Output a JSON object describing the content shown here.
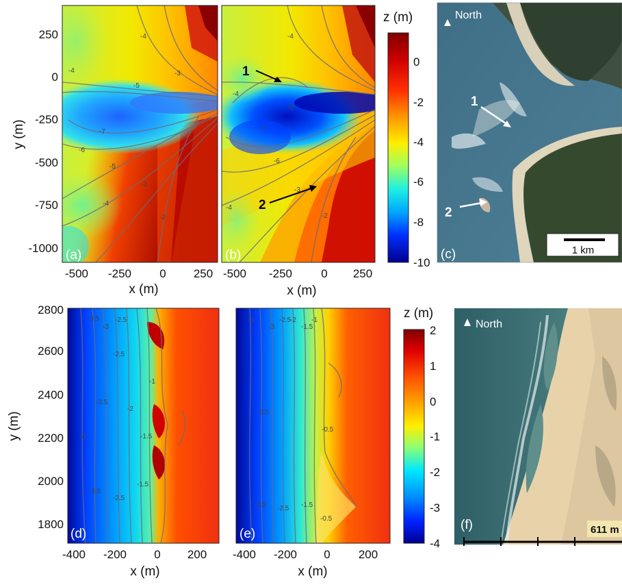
{
  "panels": {
    "a": "(a)",
    "b": "(b)",
    "c": "(c)",
    "d": "(d)",
    "e": "(e)",
    "f": "(f)"
  },
  "top": {
    "xlabel_a": "x (m)",
    "xlabel_b": "x (m)",
    "ylabel": "y (m)",
    "yticks": [
      "250",
      "0",
      "-250",
      "-500",
      "-750",
      "-1000"
    ],
    "xticks_a": [
      "-500",
      "-250",
      "0",
      "250"
    ],
    "xticks_b": [
      "-500",
      "-250",
      "0",
      "250"
    ],
    "colorbar": {
      "title": "z (m)",
      "ticks": [
        "0",
        "-2",
        "-4",
        "-6",
        "-8",
        "-10"
      ],
      "range": [
        -10,
        1.5
      ]
    },
    "arrow1": "1",
    "arrow2": "2",
    "contour_labels_a": [
      "-4",
      "-5",
      "-7",
      "-6",
      "-5",
      "-4",
      "-3",
      "-2",
      "-3",
      "-4"
    ],
    "contour_labels_b": [
      "-4",
      "-5",
      "-7",
      "-6",
      "-4",
      "-3",
      "-2",
      "-4"
    ],
    "photo_c": {
      "north": "North",
      "label1": "1",
      "label2": "2",
      "scale": "1 km"
    }
  },
  "bottom": {
    "xlabel_d": "x (m)",
    "xlabel_e": "x (m)",
    "ylabel": "y (m)",
    "yticks": [
      "2800",
      "2600",
      "2400",
      "2200",
      "2000",
      "1800"
    ],
    "xticks_d": [
      "-400",
      "-200",
      "0",
      "200"
    ],
    "xticks_e": [
      "-400",
      "-200",
      "0",
      "200"
    ],
    "colorbar": {
      "title": "z (m)",
      "ticks": [
        "2",
        "1",
        "0",
        "-1",
        "-2",
        "-3",
        "-4"
      ],
      "range": [
        -4,
        2
      ]
    },
    "contour_labels_d": [
      "-4",
      "-3.5",
      "-3",
      "-2.5",
      "-2",
      "-1.5",
      "-1",
      "-3.5",
      "-2.5",
      "-1.5",
      "-4",
      "-3.5",
      "-2.5"
    ],
    "contour_labels_e": [
      "-4",
      "-3.5",
      "-3",
      "-2.5",
      "-2",
      "-1.5",
      "-1",
      "-0.5",
      "-3.5",
      "-2.5",
      "-1.5",
      "-0.5"
    ],
    "photo_f": {
      "north": "North",
      "scale": "611 m"
    }
  },
  "colors": {
    "deep_blue": "#00008f",
    "blue": "#0050ff",
    "cyan": "#00d8ff",
    "green": "#7fff7f",
    "yellow": "#ffee00",
    "orange": "#ff7a00",
    "red": "#e01010",
    "dark_red": "#7f0000"
  }
}
